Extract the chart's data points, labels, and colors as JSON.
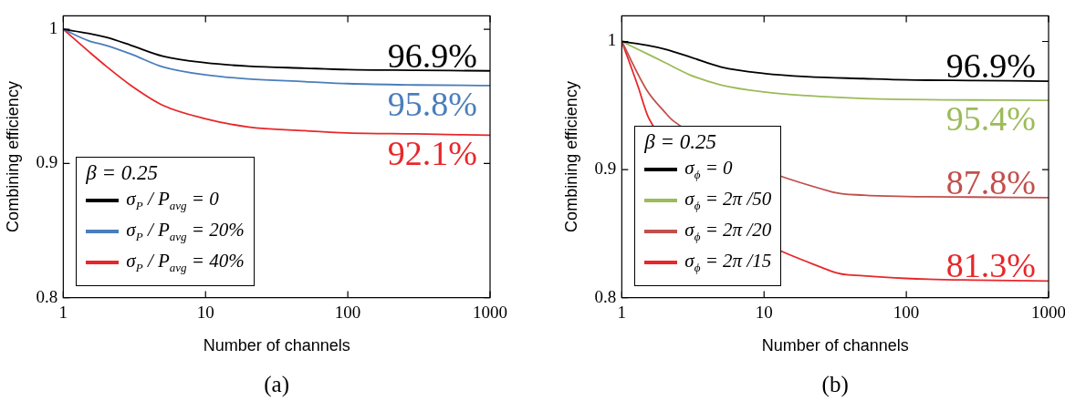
{
  "chart_data": [
    {
      "type": "line",
      "title": "(a)",
      "xlabel": "Number of channels",
      "ylabel": "Combining efficiency",
      "legend_title": "β = 0.25",
      "legend": "bottom left",
      "log": "x",
      "grid": false,
      "xlim": [
        1,
        1000
      ],
      "xticks": [
        1,
        10,
        100,
        1000
      ],
      "ylim": [
        0.8,
        1.01
      ],
      "yticks": [
        0.8,
        0.9,
        1
      ],
      "x": [
        1,
        1.5,
        2,
        3,
        5,
        10,
        20,
        50,
        100,
        300,
        1000
      ],
      "series": [
        {
          "name": "σ$_{P}$ / P$_{avg}$ = 0",
          "color": "#000000",
          "values": [
            1,
            0.997,
            0.994,
            0.988,
            0.98,
            0.975,
            0.9725,
            0.971,
            0.97,
            0.9695,
            0.969
          ]
        },
        {
          "name": "σ$_{P}$ / P$_{avg}$ = 20%",
          "color": "#4a7ebb",
          "values": [
            1,
            0.9915,
            0.988,
            0.9815,
            0.972,
            0.966,
            0.963,
            0.961,
            0.9595,
            0.9585,
            0.958
          ]
        },
        {
          "name": "σ$_{P}$ / P$_{avg}$ = 40%",
          "color": "#e8272a",
          "values": [
            1,
            0.9837,
            0.9725,
            0.958,
            0.9434,
            0.9333,
            0.9272,
            0.9244,
            0.9228,
            0.922,
            0.921
          ]
        }
      ],
      "annotations": [
        {
          "text": "96.9%",
          "y": 0.969
        },
        {
          "text": "95.8%",
          "y": 0.958
        },
        {
          "text": "92.1%",
          "y": 0.921
        }
      ]
    },
    {
      "type": "line",
      "title": "(b)",
      "xlabel": "Number of channels",
      "ylabel": "Combining efficiency",
      "legend_title": "β = 0.25",
      "legend": "bottom left",
      "log": "x",
      "grid": false,
      "xlim": [
        1,
        1000
      ],
      "xticks": [
        1,
        10,
        100,
        1000
      ],
      "ylim": [
        0.8,
        1.02
      ],
      "yticks": [
        0.8,
        0.9,
        1
      ],
      "series": [
        {
          "name": "σ$_{ϕ}$ = 0",
          "color": "#000000",
          "x": [
            1,
            1.5,
            2,
            3,
            5,
            10,
            20,
            50,
            100,
            300,
            1000
          ],
          "values": [
            1,
            0.997,
            0.994,
            0.988,
            0.98,
            0.975,
            0.9725,
            0.971,
            0.97,
            0.9695,
            0.969
          ]
        },
        {
          "name": "σ$_{ϕ}$ = 2π /50",
          "color": "#9bbb59",
          "x": [
            1,
            1.5,
            2,
            3,
            5,
            10,
            20,
            50,
            100,
            300,
            1000
          ],
          "values": [
            1,
            0.9905,
            0.9836,
            0.974,
            0.966,
            0.9606,
            0.9577,
            0.9554,
            0.9547,
            0.9543,
            0.954
          ]
        },
        {
          "name": "σ$_{ϕ}$ = 2π /20",
          "color": "#c0504d",
          "x": [
            1,
            1.5,
            2,
            2.3,
            30,
            50,
            100,
            300,
            1000
          ],
          "values": [
            1,
            0.962,
            0.945,
            0.938,
            0.8826,
            0.88,
            0.879,
            0.8785,
            0.878
          ]
        },
        {
          "name": "σ$_{ϕ}$ = 2π /15",
          "color": "#e8272a",
          "x": [
            1,
            1.3,
            1.55,
            30,
            50,
            100,
            300,
            1000
          ],
          "values": [
            1,
            0.965,
            0.94,
            0.8204,
            0.817,
            0.815,
            0.8137,
            0.813
          ]
        }
      ],
      "annotations": [
        {
          "text": "96.9%",
          "y": 0.969
        },
        {
          "text": "95.4%",
          "y": 0.954
        },
        {
          "text": "87.8%",
          "y": 0.878
        },
        {
          "text": "81.3%",
          "y": 0.813
        }
      ]
    }
  ]
}
